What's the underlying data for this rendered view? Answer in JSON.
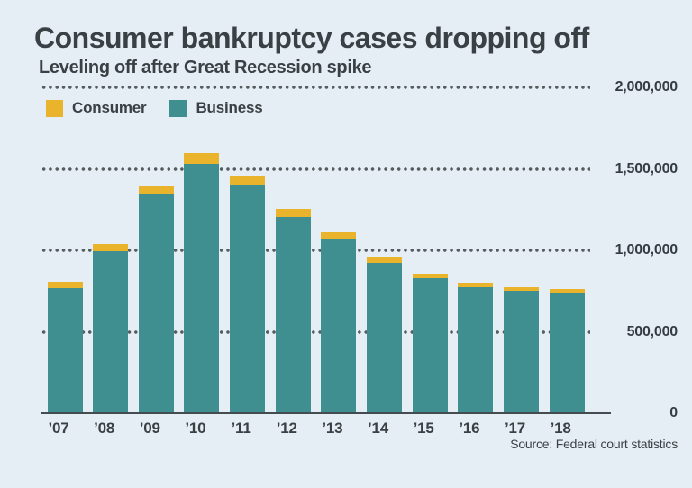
{
  "page": {
    "background": "#e5eef4",
    "text_color": "#3a4145"
  },
  "header": {
    "title": "Consumer bankruptcy cases dropping off",
    "subtitle": "Leveling off after Great Recession spike"
  },
  "legend": {
    "items": [
      {
        "label": "Consumer",
        "color": "#eab32c"
      },
      {
        "label": "Business",
        "color": "#3f8f90"
      }
    ]
  },
  "footer": {
    "source": "Source: Federal court statistics"
  },
  "chart_data": {
    "type": "bar",
    "stacked": true,
    "title": "Consumer bankruptcy cases dropping off",
    "subtitle": "Leveling off after Great Recession spike",
    "source": "Source: Federal court statistics",
    "categories": [
      "’07",
      "’08",
      "’09",
      "’10",
      "’11",
      "’12",
      "’13",
      "’14",
      "’15",
      "’16",
      "’17",
      "’18"
    ],
    "series": [
      {
        "name": "Business",
        "color": "#3f8f90",
        "values": [
          766000,
          993000,
          1343000,
          1530000,
          1403000,
          1206000,
          1071000,
          924000,
          827000,
          771000,
          753000,
          740000
        ]
      },
      {
        "name": "Consumer",
        "color": "#eab32c",
        "values": [
          39000,
          46000,
          51000,
          66000,
          58000,
          48000,
          37000,
          37000,
          29000,
          29000,
          24000,
          23000
        ]
      }
    ],
    "totals": [
      805000,
      1039000,
      1394000,
      1596000,
      1461000,
      1254000,
      1108000,
      961000,
      856000,
      800000,
      777000,
      763000
    ],
    "ylim": [
      0,
      2000000
    ],
    "yticks": [
      {
        "value": 2000000,
        "label": "2,000,000"
      },
      {
        "value": 1500000,
        "label": "1,500,000"
      },
      {
        "value": 1000000,
        "label": "1,000,000"
      },
      {
        "value": 500000,
        "label": "500,000"
      },
      {
        "value": 0,
        "label": "0"
      }
    ],
    "grid": "horizontal-dotted",
    "legend_position": "top-left",
    "colors": {
      "grid_dot": "#565d61",
      "axis_line": "#454c50"
    }
  }
}
